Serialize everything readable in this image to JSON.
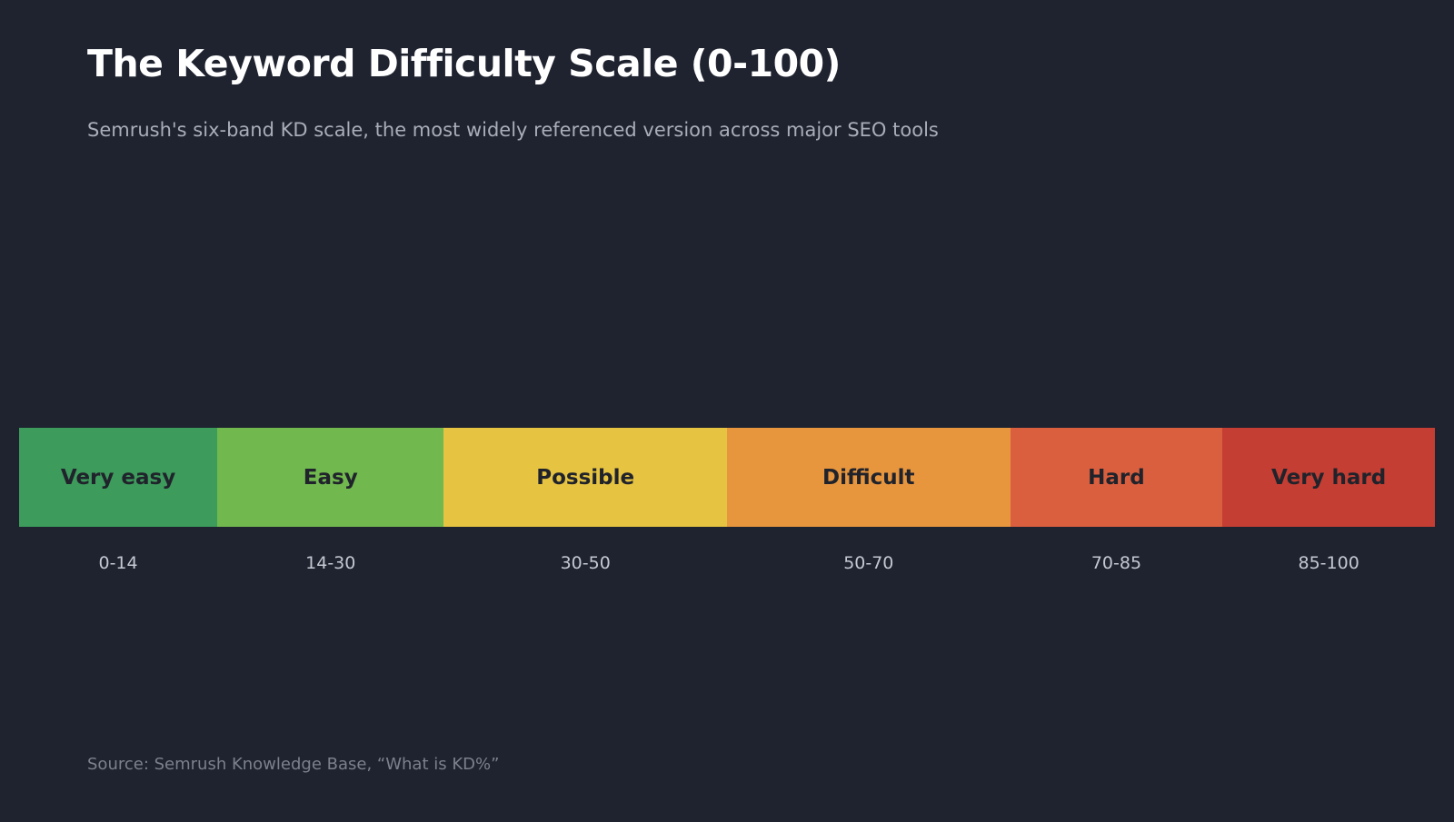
{
  "chart_data": {
    "type": "bar",
    "title": "The Keyword Difficulty Scale (0-100)",
    "subtitle": "Semrush's six-band KD scale, the most widely referenced version across major SEO tools",
    "source": "Source: Semrush Knowledge Base, “What is KD%”",
    "xlim": [
      0,
      100
    ],
    "bands": [
      {
        "label": "Very easy",
        "range_label": "0-14",
        "start": 0,
        "end": 14,
        "color": "#3d9b5c"
      },
      {
        "label": "Easy",
        "range_label": "14-30",
        "start": 14,
        "end": 30,
        "color": "#71b94f"
      },
      {
        "label": "Possible",
        "range_label": "30-50",
        "start": 30,
        "end": 50,
        "color": "#e6c340"
      },
      {
        "label": "Difficult",
        "range_label": "50-70",
        "start": 50,
        "end": 70,
        "color": "#e8963e"
      },
      {
        "label": "Hard",
        "range_label": "70-85",
        "start": 70,
        "end": 85,
        "color": "#da5f3e"
      },
      {
        "label": "Very hard",
        "range_label": "85-100",
        "start": 85,
        "end": 100,
        "color": "#c43e33"
      }
    ]
  }
}
